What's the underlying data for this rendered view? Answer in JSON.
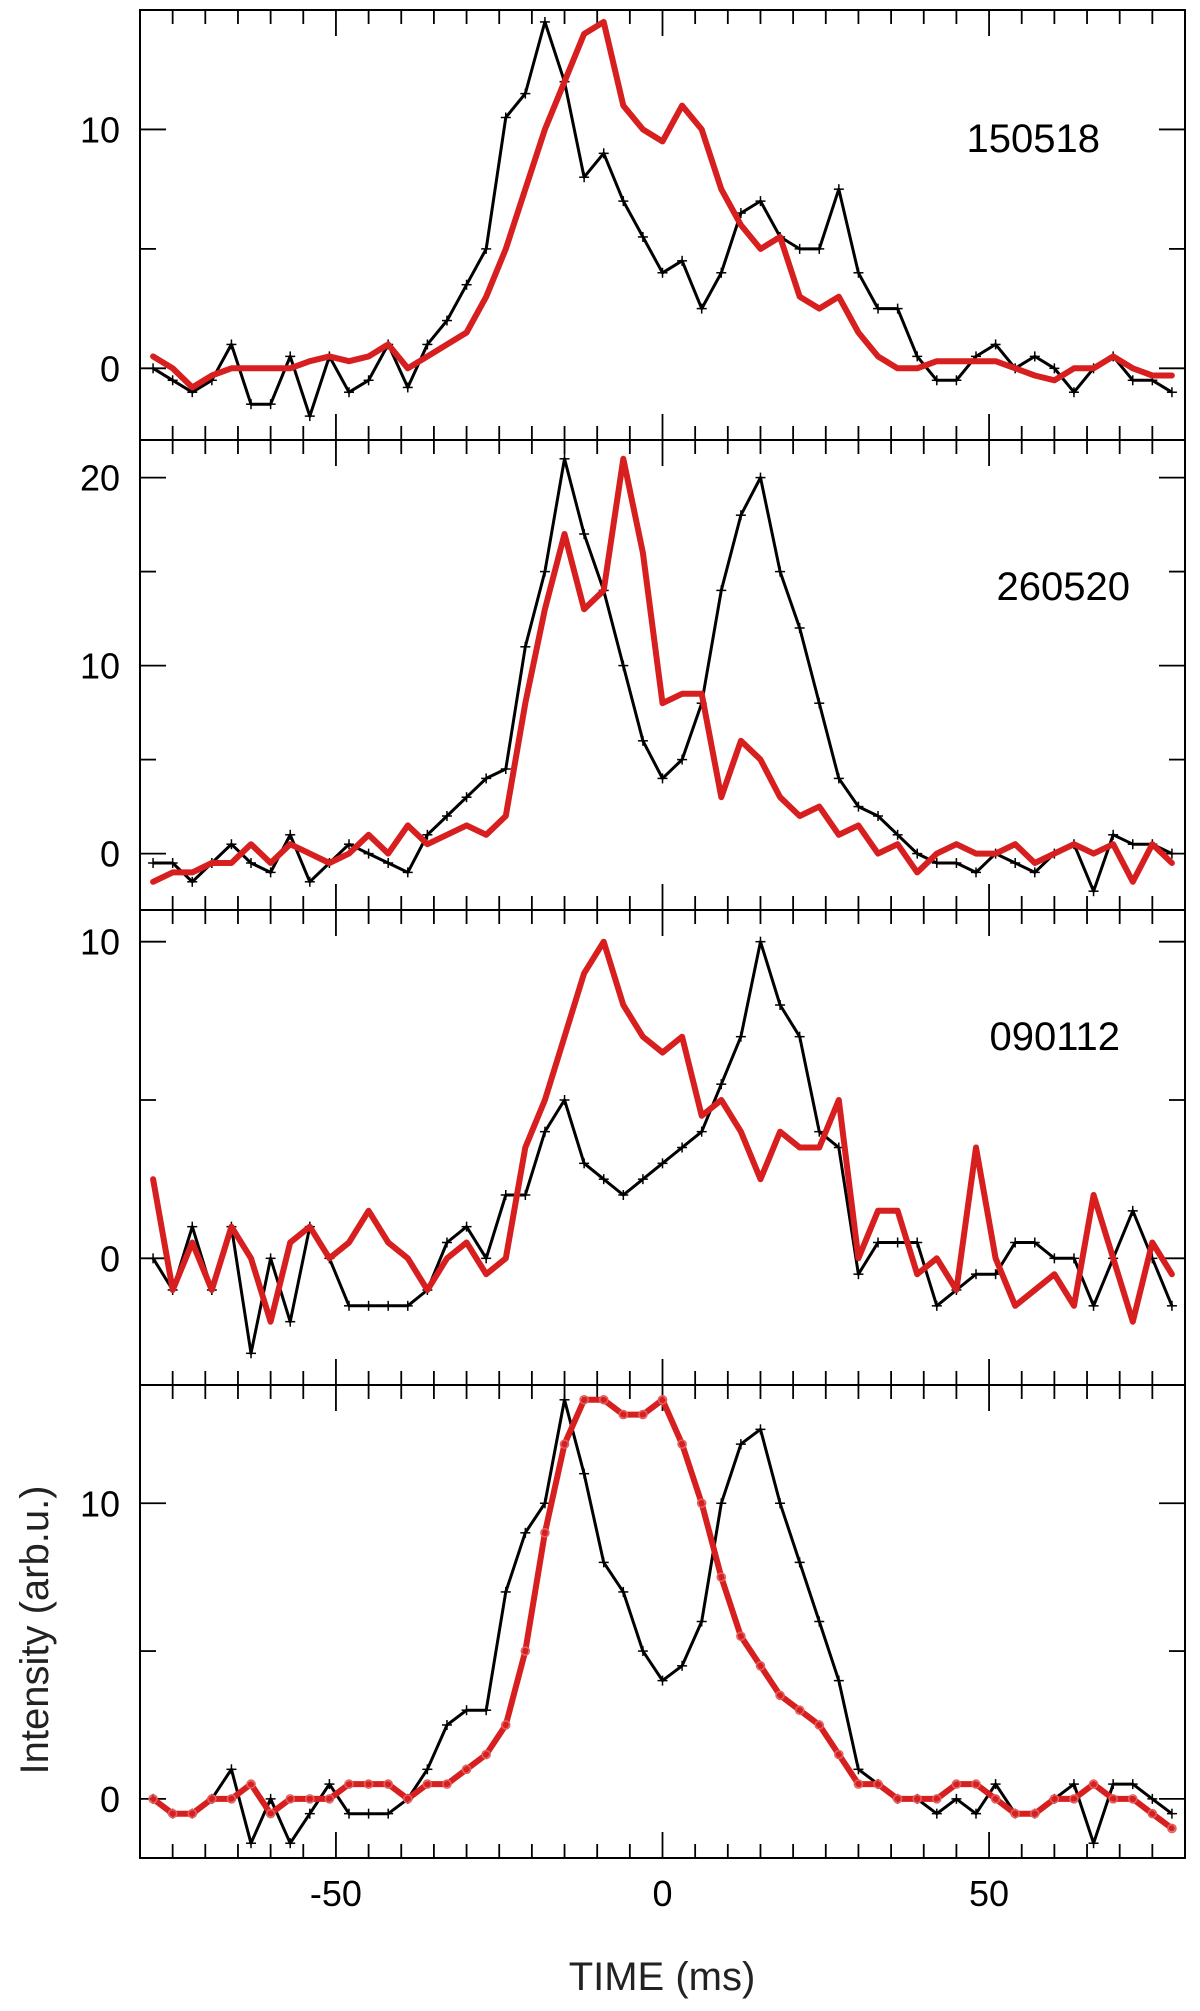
{
  "chart_data": [
    {
      "type": "line",
      "panel_label": "150518",
      "xlim": [
        -80,
        80
      ],
      "ylim": [
        -3,
        15
      ],
      "yticks": [
        0,
        10
      ],
      "series": [
        {
          "color": "#000000",
          "markers": "plus",
          "x": [
            -78,
            -75,
            -72,
            -69,
            -66,
            -63,
            -60,
            -57,
            -54,
            -51,
            -48,
            -45,
            -42,
            -39,
            -36,
            -33,
            -30,
            -27,
            -24,
            -21,
            -18,
            -15,
            -12,
            -9,
            -6,
            -3,
            0,
            3,
            6,
            9,
            12,
            15,
            18,
            21,
            24,
            27,
            30,
            33,
            36,
            39,
            42,
            45,
            48,
            51,
            54,
            57,
            60,
            63,
            66,
            69,
            72,
            75,
            78
          ],
          "y": [
            0,
            -0.5,
            -1,
            -0.5,
            1,
            -1.5,
            -1.5,
            0.5,
            -2,
            0.5,
            -1,
            -0.5,
            1,
            -0.8,
            1,
            2,
            3.5,
            5,
            10.5,
            11.5,
            14.5,
            12,
            8,
            9,
            7,
            5.5,
            4,
            4.5,
            2.5,
            4,
            6.5,
            7,
            5.5,
            5,
            5,
            7.5,
            4,
            2.5,
            2.5,
            0.5,
            -0.5,
            -0.5,
            0.5,
            1,
            0,
            0.5,
            0,
            -1,
            0,
            0.5,
            -0.5,
            -0.5,
            -1
          ]
        },
        {
          "color": "#d81f1f",
          "markers": "none",
          "x": [
            -78,
            -75,
            -72,
            -69,
            -66,
            -63,
            -60,
            -57,
            -54,
            -51,
            -48,
            -45,
            -42,
            -39,
            -36,
            -33,
            -30,
            -27,
            -24,
            -21,
            -18,
            -15,
            -12,
            -9,
            -6,
            -3,
            0,
            3,
            6,
            9,
            12,
            15,
            18,
            21,
            24,
            27,
            30,
            33,
            36,
            39,
            42,
            45,
            48,
            51,
            54,
            57,
            60,
            63,
            66,
            69,
            72,
            75,
            78
          ],
          "y": [
            0.5,
            0,
            -0.8,
            -0.3,
            0,
            0,
            0,
            0,
            0.3,
            0.5,
            0.3,
            0.5,
            1,
            0,
            0.5,
            1,
            1.5,
            3,
            5,
            7.5,
            10,
            12,
            14,
            14.5,
            11,
            10,
            9.5,
            11,
            10,
            7.5,
            6,
            5,
            5.5,
            3,
            2.5,
            3,
            1.5,
            0.5,
            0,
            0,
            0.3,
            0.3,
            0.3,
            0.3,
            0,
            -0.3,
            -0.5,
            0,
            0,
            0.5,
            0,
            -0.3,
            -0.3
          ]
        }
      ]
    },
    {
      "type": "line",
      "panel_label": "260520",
      "xlim": [
        -80,
        80
      ],
      "ylim": [
        -3,
        22
      ],
      "yticks": [
        0,
        10,
        20
      ],
      "series": [
        {
          "color": "#000000",
          "markers": "plus",
          "x": [
            -78,
            -75,
            -72,
            -69,
            -66,
            -63,
            -60,
            -57,
            -54,
            -51,
            -48,
            -45,
            -42,
            -39,
            -36,
            -33,
            -30,
            -27,
            -24,
            -21,
            -18,
            -15,
            -12,
            -9,
            -6,
            -3,
            0,
            3,
            6,
            9,
            12,
            15,
            18,
            21,
            24,
            27,
            30,
            33,
            36,
            39,
            42,
            45,
            48,
            51,
            54,
            57,
            60,
            63,
            66,
            69,
            72,
            75,
            78
          ],
          "y": [
            -0.5,
            -0.5,
            -1.5,
            -0.5,
            0.5,
            -0.5,
            -1,
            1,
            -1.5,
            -0.5,
            0.5,
            0,
            -0.5,
            -1,
            1,
            2,
            3,
            4,
            4.5,
            11,
            15,
            21,
            17,
            14,
            10,
            6,
            4,
            5,
            8,
            14,
            18,
            20,
            15,
            12,
            8,
            4,
            2.5,
            2,
            1,
            0,
            -0.5,
            -0.5,
            -1,
            0,
            -0.5,
            -1,
            0,
            0.5,
            -2,
            1,
            0.5,
            0.5,
            0
          ]
        },
        {
          "color": "#d81f1f",
          "markers": "none",
          "x": [
            -78,
            -75,
            -72,
            -69,
            -66,
            -63,
            -60,
            -57,
            -54,
            -51,
            -48,
            -45,
            -42,
            -39,
            -36,
            -33,
            -30,
            -27,
            -24,
            -21,
            -18,
            -15,
            -12,
            -9,
            -6,
            -3,
            0,
            3,
            6,
            9,
            12,
            15,
            18,
            21,
            24,
            27,
            30,
            33,
            36,
            39,
            42,
            45,
            48,
            51,
            54,
            57,
            60,
            63,
            66,
            69,
            72,
            75,
            78
          ],
          "y": [
            -1.5,
            -1,
            -1,
            -0.5,
            -0.5,
            0.5,
            -0.5,
            0.5,
            0,
            -0.5,
            0,
            1,
            0,
            1.5,
            0.5,
            1,
            1.5,
            1,
            2,
            8,
            13,
            17,
            13,
            14,
            21,
            16,
            8,
            8.5,
            8.5,
            3,
            6,
            5,
            3,
            2,
            2.5,
            1,
            1.5,
            0,
            0.5,
            -1,
            0,
            0.5,
            0,
            0,
            0.5,
            -0.5,
            0,
            0.5,
            0,
            0.5,
            -1.5,
            0.5,
            -0.5
          ]
        }
      ]
    },
    {
      "type": "line",
      "panel_label": "090112",
      "xlim": [
        -80,
        80
      ],
      "ylim": [
        -4,
        11
      ],
      "yticks": [
        0,
        10
      ],
      "series": [
        {
          "color": "#000000",
          "markers": "plus",
          "x": [
            -78,
            -75,
            -72,
            -69,
            -66,
            -63,
            -60,
            -57,
            -54,
            -51,
            -48,
            -45,
            -42,
            -39,
            -36,
            -33,
            -30,
            -27,
            -24,
            -21,
            -18,
            -15,
            -12,
            -9,
            -6,
            -3,
            0,
            3,
            6,
            9,
            12,
            15,
            18,
            21,
            24,
            27,
            30,
            33,
            36,
            39,
            42,
            45,
            48,
            51,
            54,
            57,
            60,
            63,
            66,
            69,
            72,
            75,
            78
          ],
          "y": [
            0,
            -1,
            1,
            -1,
            1,
            -3,
            0,
            -2,
            1,
            0,
            -1.5,
            -1.5,
            -1.5,
            -1.5,
            -1,
            0.5,
            1,
            0,
            2,
            2,
            4,
            5,
            3,
            2.5,
            2,
            2.5,
            3,
            3.5,
            4,
            5.5,
            7,
            10,
            8,
            7,
            4,
            3.5,
            -0.5,
            0.5,
            0.5,
            0.5,
            -1.5,
            -1,
            -0.5,
            -0.5,
            0.5,
            0.5,
            0,
            0,
            -1.5,
            0,
            1.5,
            0,
            -1.5
          ]
        },
        {
          "color": "#d81f1f",
          "markers": "none",
          "x": [
            -78,
            -75,
            -72,
            -69,
            -66,
            -63,
            -60,
            -57,
            -54,
            -51,
            -48,
            -45,
            -42,
            -39,
            -36,
            -33,
            -30,
            -27,
            -24,
            -21,
            -18,
            -15,
            -12,
            -9,
            -6,
            -3,
            0,
            3,
            6,
            9,
            12,
            15,
            18,
            21,
            24,
            27,
            30,
            33,
            36,
            39,
            42,
            45,
            48,
            51,
            54,
            57,
            60,
            63,
            66,
            69,
            72,
            75,
            78
          ],
          "y": [
            2.5,
            -1,
            0.5,
            -1,
            1,
            0,
            -2,
            0.5,
            1,
            0,
            0.5,
            1.5,
            0.5,
            0,
            -1,
            0,
            0.5,
            -0.5,
            0,
            3.5,
            5,
            7,
            9,
            10,
            8,
            7,
            6.5,
            7,
            4.5,
            5,
            4,
            2.5,
            4,
            3.5,
            3.5,
            5,
            0,
            1.5,
            1.5,
            -0.5,
            0,
            -1,
            3.5,
            0,
            -1.5,
            -1,
            -0.5,
            -1.5,
            2,
            0,
            -2,
            0.5,
            -0.5
          ]
        }
      ]
    },
    {
      "type": "line",
      "panel_label": "",
      "xlim": [
        -80,
        80
      ],
      "ylim": [
        -2,
        14
      ],
      "yticks": [
        0,
        10
      ],
      "xticks": [
        -50,
        0,
        50
      ],
      "xlabel": "TIME (ms)",
      "ylabel": "Intensity (arb.u.)",
      "series": [
        {
          "color": "#000000",
          "markers": "plus",
          "x": [
            -78,
            -75,
            -72,
            -69,
            -66,
            -63,
            -60,
            -57,
            -54,
            -51,
            -48,
            -45,
            -42,
            -39,
            -36,
            -33,
            -30,
            -27,
            -24,
            -21,
            -18,
            -15,
            -12,
            -9,
            -6,
            -3,
            0,
            3,
            6,
            9,
            12,
            15,
            18,
            21,
            24,
            27,
            30,
            33,
            36,
            39,
            42,
            45,
            48,
            51,
            54,
            57,
            60,
            63,
            66,
            69,
            72,
            75,
            78
          ],
          "y": [
            0,
            -0.5,
            -0.5,
            0,
            1,
            -1.5,
            0,
            -1.5,
            -0.5,
            0.5,
            -0.5,
            -0.5,
            -0.5,
            0,
            1,
            2.5,
            3,
            3,
            7,
            9,
            10,
            13.5,
            11,
            8,
            7,
            5,
            4,
            4.5,
            6,
            10,
            12,
            12.5,
            10,
            8,
            6,
            4,
            1,
            0.5,
            0,
            0,
            -0.5,
            0,
            -0.5,
            0.5,
            -0.5,
            -0.5,
            0,
            0.5,
            -1.5,
            0.5,
            0.5,
            0,
            -0.5
          ]
        },
        {
          "color": "#d81f1f",
          "markers": "circle",
          "x": [
            -78,
            -75,
            -72,
            -69,
            -66,
            -63,
            -60,
            -57,
            -54,
            -51,
            -48,
            -45,
            -42,
            -39,
            -36,
            -33,
            -30,
            -27,
            -24,
            -21,
            -18,
            -15,
            -12,
            -9,
            -6,
            -3,
            0,
            3,
            6,
            9,
            12,
            15,
            18,
            21,
            24,
            27,
            30,
            33,
            36,
            39,
            42,
            45,
            48,
            51,
            54,
            57,
            60,
            63,
            66,
            69,
            72,
            75,
            78
          ],
          "y": [
            0,
            -0.5,
            -0.5,
            0,
            0,
            0.5,
            -0.5,
            0,
            0,
            0,
            0.5,
            0.5,
            0.5,
            0,
            0.5,
            0.5,
            1,
            1.5,
            2.5,
            5,
            9,
            12,
            13.5,
            13.5,
            13,
            13,
            13.5,
            12,
            10,
            7.5,
            5.5,
            4.5,
            3.5,
            3,
            2.5,
            1.5,
            0.5,
            0.5,
            0,
            0,
            0,
            0.5,
            0.5,
            0,
            -0.5,
            -0.5,
            0,
            0,
            0.5,
            0,
            0,
            -0.5,
            -1
          ]
        }
      ]
    }
  ]
}
